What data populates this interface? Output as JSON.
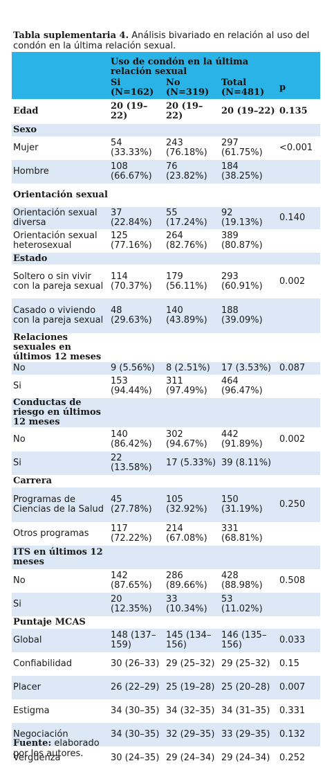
{
  "caption": {
    "label": "Tabla suplementaria 4.",
    "text": " Análisis bivariado en relación al uso del condón en la última relación sexual."
  },
  "header": {
    "group": "Uso de condón en la última relación sexual",
    "col_si": "Si (N=162)",
    "col_no": "No (N=319)",
    "col_total": "Total (N=481)",
    "col_p": "p"
  },
  "rows": [
    {
      "type": "section",
      "label": "Edad",
      "si": "20 (19–22)",
      "no": "20 (19–22)",
      "total": "20 (19–22)",
      "p": "0.135",
      "shade": false,
      "h": 36
    },
    {
      "type": "section",
      "label": "Sexo",
      "si": "",
      "no": "",
      "total": "",
      "p": "",
      "shade": true,
      "h": 18
    },
    {
      "type": "data",
      "label": "Mujer",
      "si": "54 (33.33%)",
      "no": "243 (76.18%)",
      "total": "297 (61.75%)",
      "p": "<0.001",
      "shade": false,
      "h": 34
    },
    {
      "type": "data",
      "label": "Hombre",
      "si": "108 (66.67%)",
      "no": "76 (23.82%)",
      "total": "184 (38.25%)",
      "p": "",
      "shade": true,
      "h": 34
    },
    {
      "type": "section",
      "label": "Orientación sexual",
      "si": "",
      "no": "",
      "total": "",
      "p": "",
      "shade": false,
      "h": 34
    },
    {
      "type": "data",
      "label": "Orientación sexual diversa",
      "si": "37 (22.84%)",
      "no": "55 (17.24%)",
      "total": "92 (19.13%)",
      "p": "0.140",
      "shade": true,
      "h": 32
    },
    {
      "type": "data",
      "label": "Orientación sexual heterosexual",
      "si": "125 (77.16%)",
      "no": "264 (82.76%)",
      "total": "389 (80.87%)",
      "p": "",
      "shade": false,
      "h": 34
    },
    {
      "type": "section",
      "label": "Estado",
      "si": "",
      "no": "",
      "total": "",
      "p": "",
      "shade": true,
      "h": 17
    },
    {
      "type": "data",
      "label": "Soltero o sin vivir con la pareja sexual",
      "si": "114 (70.37%)",
      "no": "179 (56.11%)",
      "total": "293 (60.91%)",
      "p": "0.002",
      "shade": false,
      "h": 49
    },
    {
      "type": "data",
      "label": "Casado o viviendo con la pareja sexual",
      "si": "48 (29.63%)",
      "no": "140 (43.89%)",
      "total": "188 (39.09%)",
      "p": "",
      "shade": true,
      "h": 50
    },
    {
      "type": "section",
      "label": "Relaciones sexuales en últimos 12 meses",
      "si": "",
      "no": "",
      "total": "",
      "p": "",
      "shade": false,
      "h": 18
    },
    {
      "type": "data",
      "label": "No",
      "si": "9 (5.56%)",
      "no": "8 (2.51%)",
      "total": "17 (3.53%)",
      "p": "0.087",
      "shade": true,
      "h": 18
    },
    {
      "type": "data",
      "label": "Si",
      "si": "153 (94.44%)",
      "no": "311 (97.49%)",
      "total": "464 (96.47%)",
      "p": "",
      "shade": false,
      "h": 34
    },
    {
      "type": "section",
      "label": "Conductas de riesgo en últimos 12 meses",
      "si": "",
      "no": "",
      "total": "",
      "p": "",
      "shade": true,
      "h": 18
    },
    {
      "type": "data",
      "label": "No",
      "si": "140 (86.42%)",
      "no": "302 (94.67%)",
      "total": "442 (91.89%)",
      "p": "0.002",
      "shade": false,
      "h": 35
    },
    {
      "type": "data",
      "label": "Si",
      "si": "22 (13.58%)",
      "no": "17 (5.33%)",
      "total": "39 (8.11%)",
      "p": "",
      "shade": true,
      "h": 34
    },
    {
      "type": "section",
      "label": "Carrera",
      "si": "",
      "no": "",
      "total": "",
      "p": "",
      "shade": false,
      "h": 18
    },
    {
      "type": "data",
      "label": "Programas de Ciencias de la Salud",
      "si": "45 (27.78%)",
      "no": "105 (32.92%)",
      "total": "150 (31.19%)",
      "p": "0.250",
      "shade": true,
      "h": 50
    },
    {
      "type": "data",
      "label": "Otros programas",
      "si": "117 (72.22%)",
      "no": "214 (67.08%)",
      "total": "331 (68.81%)",
      "p": "",
      "shade": false,
      "h": 34
    },
    {
      "type": "section",
      "label": "ITS en últimos 12 meses",
      "si": "",
      "no": "",
      "total": "",
      "p": "",
      "shade": true,
      "h": 34
    },
    {
      "type": "data",
      "label": "No",
      "si": "142 (87.65%)",
      "no": "286 (89.66%)",
      "total": "428 (88.98%)",
      "p": "0.508",
      "shade": false,
      "h": 34
    },
    {
      "type": "data",
      "label": "Si",
      "si": "20 (12.35%)",
      "no": "33 (10.34%)",
      "total": "53 (11.02%)",
      "p": "",
      "shade": true,
      "h": 34
    },
    {
      "type": "section",
      "label": "Puntaje MCAS",
      "si": "",
      "no": "",
      "total": "",
      "p": "",
      "shade": false,
      "h": 18
    },
    {
      "type": "data",
      "label": "Global",
      "si": "148 (137–159)",
      "no": "145 (134–156)",
      "total": "146 (135–156)",
      "p": "0.033",
      "shade": true,
      "h": 34
    },
    {
      "type": "data",
      "label": "Confiabilidad",
      "si": "30 (26–33)",
      "no": "29 (25–32)",
      "total": "29 (25–32)",
      "p": "0.15",
      "shade": false,
      "h": 34
    },
    {
      "type": "data",
      "label": "Placer",
      "si": "26 (22–29)",
      "no": "25 (19–28)",
      "total": "25 (20–28)",
      "p": "0.007",
      "shade": true,
      "h": 34
    },
    {
      "type": "data",
      "label": "Estigma",
      "si": "34 (30–35)",
      "no": "34 (32–35)",
      "total": "34 (31–35)",
      "p": "0.331",
      "shade": false,
      "h": 34
    },
    {
      "type": "data",
      "label": "Negociación",
      "si": "34 (30–35)",
      "no": "32 (29–35)",
      "total": "33 (29–35)",
      "p": "0.132",
      "shade": true,
      "h": 34
    },
    {
      "type": "data",
      "label": "Vergüenza",
      "si": "30 (24–35)",
      "no": "29 (24–34)",
      "total": "29 (24–34)",
      "p": "0.252",
      "shade": false,
      "h": 34
    }
  ],
  "footer": {
    "label": "Fuente:",
    "text": " elaborado por los autores."
  },
  "colors": {
    "header_bg": "#2ab3e6",
    "row_shade": "#dce8f6"
  }
}
